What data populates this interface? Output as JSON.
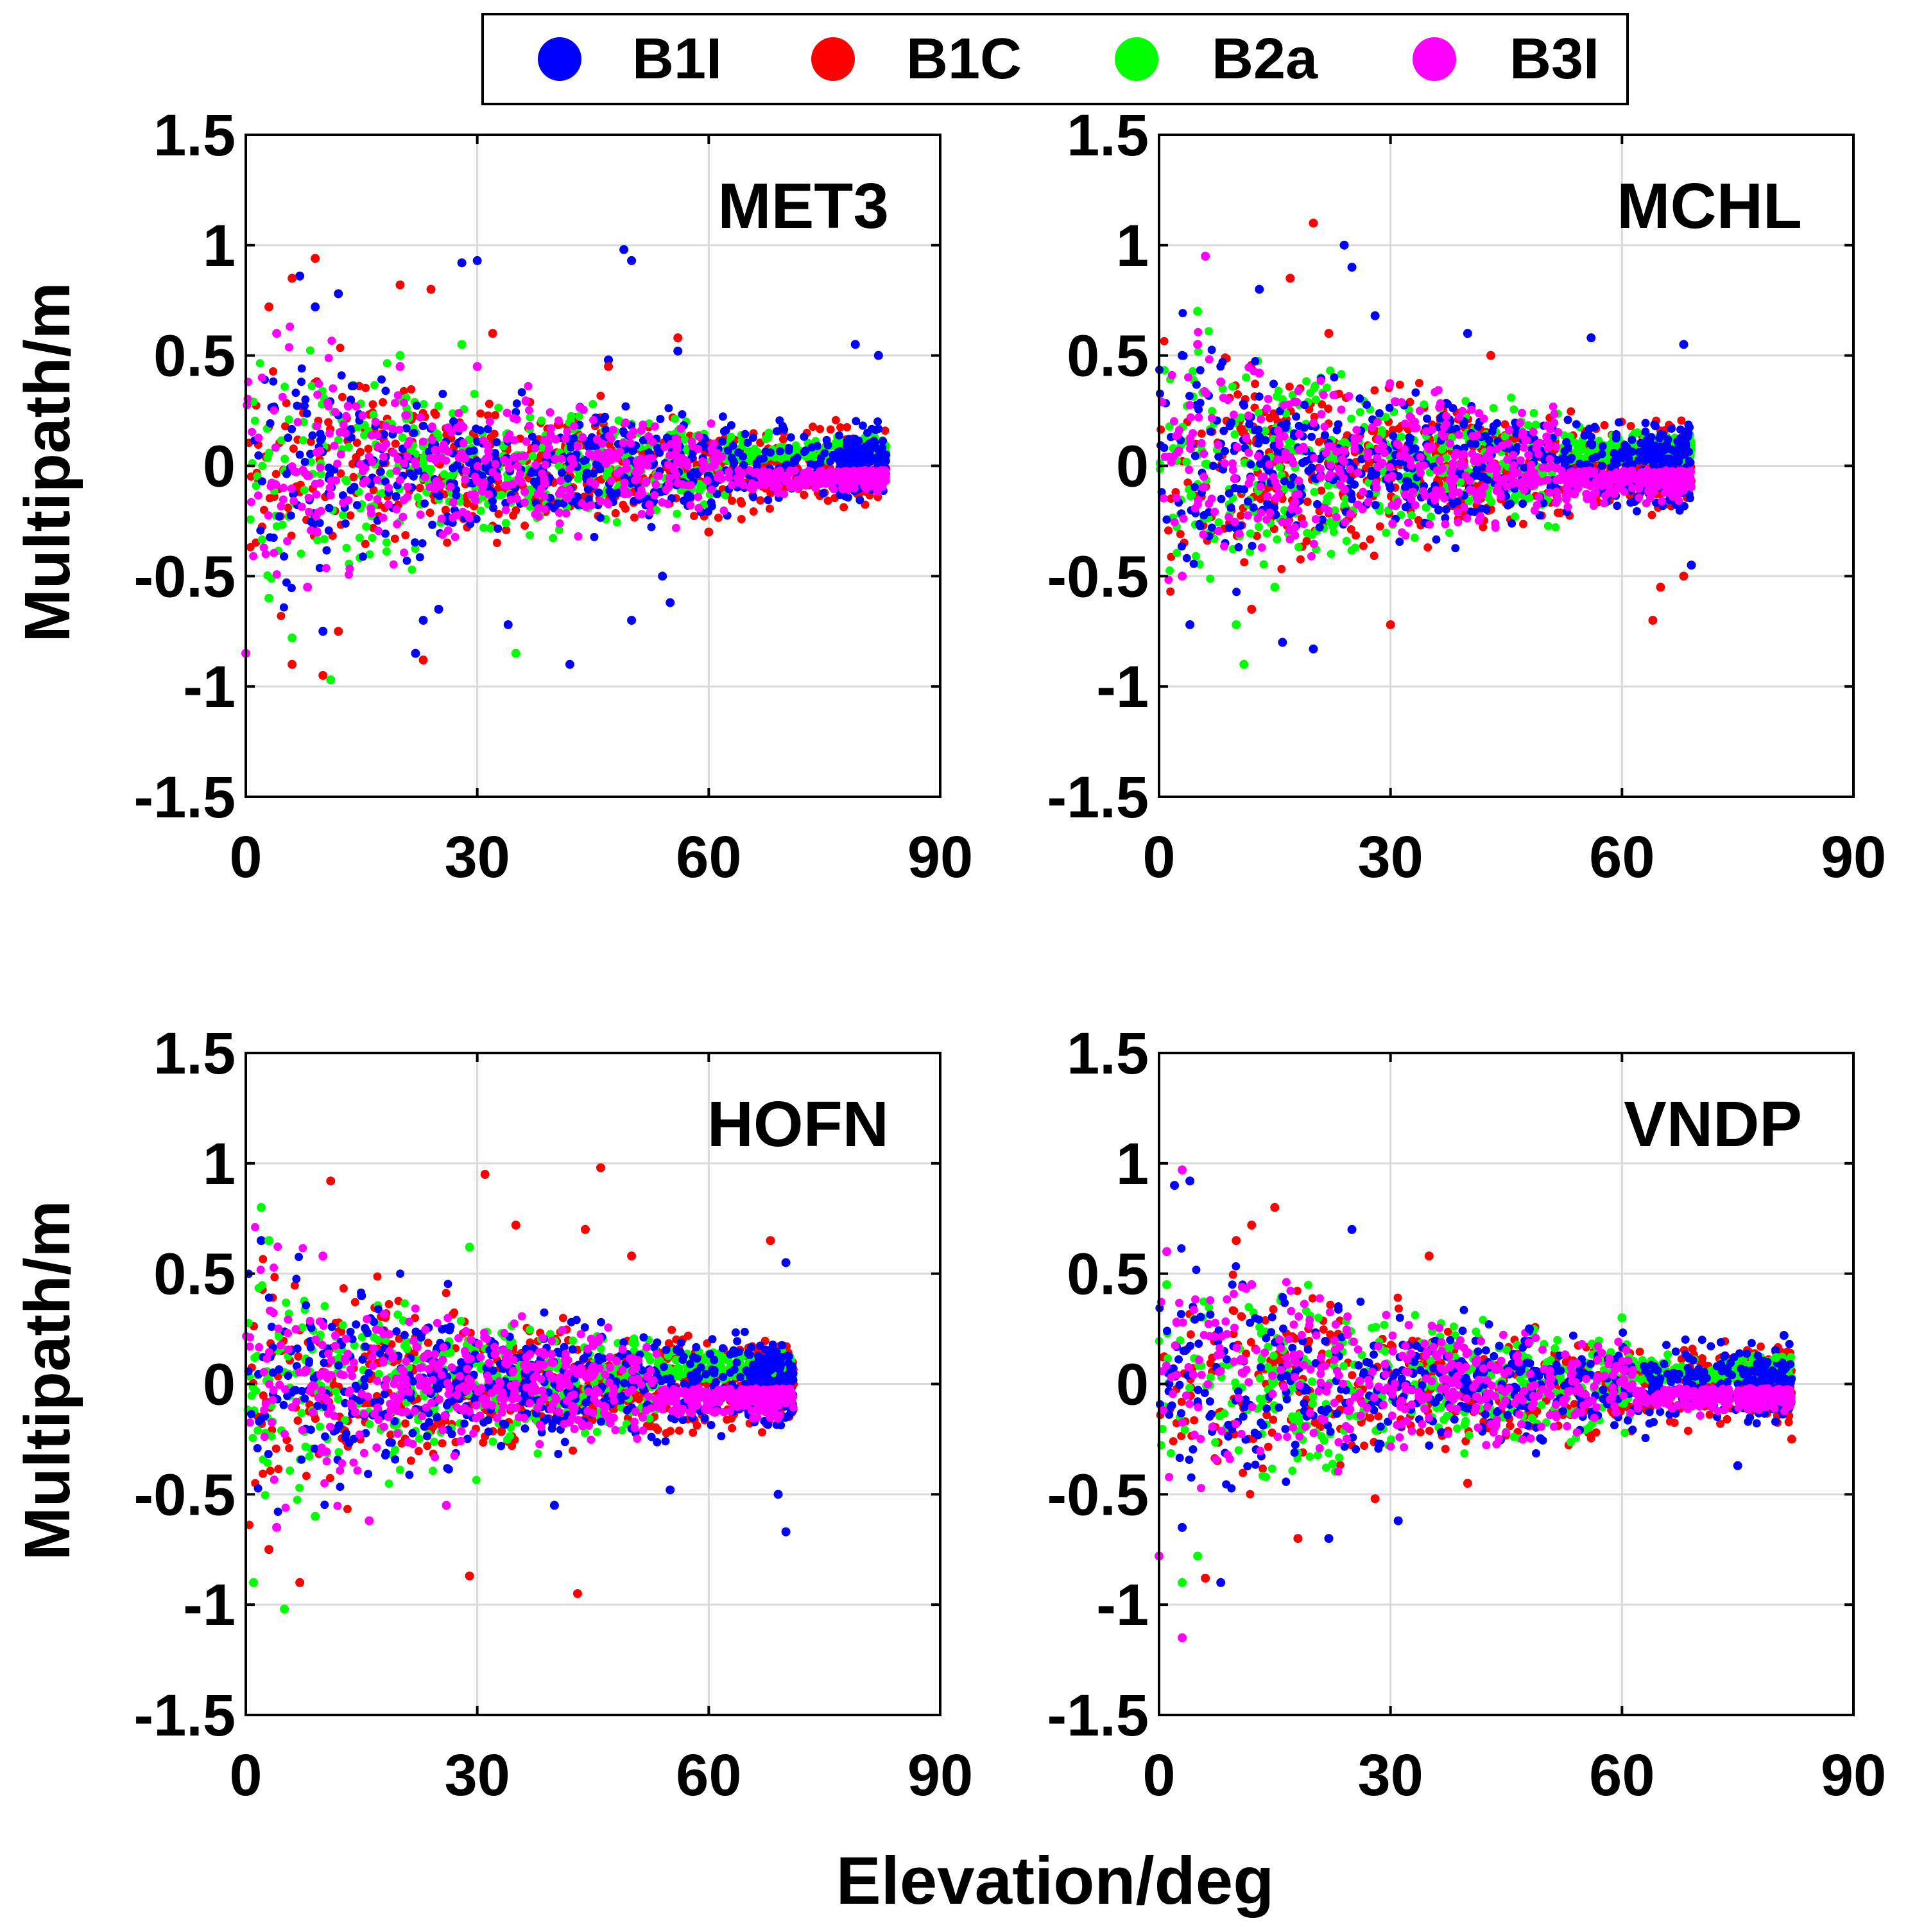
{
  "figure": {
    "xlabel": "Elevation/deg"
  },
  "legend": [
    {
      "name": "B1I",
      "color": "#0000ff"
    },
    {
      "name": "B1C",
      "color": "#ff0000"
    },
    {
      "name": "B2a",
      "color": "#00ff00"
    },
    {
      "name": "B3I",
      "color": "#ff00ff"
    }
  ],
  "chart_data": [
    {
      "type": "scatter",
      "station": "MET3",
      "ylabel": "Multipath/m",
      "xlim": [
        0,
        90
      ],
      "ylim": [
        -1.5,
        1.5
      ],
      "xticks": [
        "0",
        "30",
        "60",
        "90"
      ],
      "yticks": [
        "1.5",
        "1",
        "0.5",
        "0",
        "-0.5",
        "-1",
        "-1.5"
      ],
      "grid": true,
      "max_elevation": 83,
      "series": [
        {
          "name": "B1I",
          "color": "#0000ff",
          "points": [
            [
              28,
              0.92
            ],
            [
              30,
              0.93
            ],
            [
              49,
              0.98
            ],
            [
              50,
              0.93
            ],
            [
              7,
              0.86
            ],
            [
              42,
              -0.9
            ],
            [
              22,
              -0.85
            ],
            [
              50,
              -0.7
            ],
            [
              10,
              -0.75
            ],
            [
              23,
              -0.7
            ],
            [
              25,
              -0.65
            ],
            [
              55,
              -0.62
            ],
            [
              54,
              -0.5
            ],
            [
              34,
              -0.72
            ],
            [
              82,
              0.5
            ],
            [
              79,
              0.55
            ],
            [
              56,
              0.52
            ],
            [
              47,
              0.48
            ],
            [
              12,
              0.78
            ],
            [
              9,
              0.72
            ]
          ]
        },
        {
          "name": "B1C",
          "color": "#ff0000",
          "points": [
            [
              9,
              0.94
            ],
            [
              20,
              0.82
            ],
            [
              24,
              0.8
            ],
            [
              3,
              0.72
            ],
            [
              6,
              0.85
            ],
            [
              10,
              -0.95
            ],
            [
              6,
              -0.9
            ],
            [
              23,
              -0.88
            ],
            [
              12,
              -0.75
            ],
            [
              32,
              0.6
            ],
            [
              56,
              0.58
            ],
            [
              60,
              -0.3
            ],
            [
              47,
              0.45
            ]
          ]
        },
        {
          "name": "B2a",
          "color": "#00ff00",
          "points": [
            [
              11,
              -0.97
            ],
            [
              35,
              -0.85
            ],
            [
              3,
              -0.6
            ],
            [
              6,
              -0.78
            ],
            [
              28,
              0.55
            ],
            [
              20,
              0.5
            ]
          ]
        },
        {
          "name": "B3I",
          "color": "#ff00ff",
          "points": [
            [
              0,
              -0.85
            ],
            [
              4,
              0.6
            ],
            [
              8,
              -0.55
            ],
            [
              20,
              0.45
            ],
            [
              30,
              0.45
            ]
          ]
        }
      ]
    },
    {
      "type": "scatter",
      "station": "MCHL",
      "ylabel": "Multipath/m",
      "xlim": [
        0,
        90
      ],
      "ylim": [
        -1.5,
        1.5
      ],
      "xticks": [
        "0",
        "30",
        "60",
        "90"
      ],
      "yticks": [
        "1.5",
        "1",
        "0.5",
        "0",
        "-0.5",
        "-1",
        "-1.5"
      ],
      "grid": true,
      "max_elevation": 69,
      "series": [
        {
          "name": "B1I",
          "color": "#0000ff",
          "points": [
            [
              24,
              1.0
            ],
            [
              25,
              0.9
            ],
            [
              4,
              -0.72
            ],
            [
              20,
              -0.83
            ],
            [
              16,
              -0.8
            ],
            [
              13,
              0.8
            ],
            [
              28,
              0.68
            ],
            [
              40,
              0.6
            ],
            [
              56,
              0.58
            ],
            [
              68,
              0.55
            ],
            [
              69,
              -0.45
            ],
            [
              3,
              0.5
            ]
          ]
        },
        {
          "name": "B1C",
          "color": "#ff0000",
          "points": [
            [
              20,
              1.1
            ],
            [
              17,
              0.85
            ],
            [
              30,
              -0.72
            ],
            [
              64,
              -0.7
            ],
            [
              12,
              -0.65
            ],
            [
              22,
              0.6
            ],
            [
              65,
              -0.55
            ],
            [
              68,
              -0.5
            ],
            [
              43,
              0.5
            ]
          ]
        },
        {
          "name": "B2a",
          "color": "#00ff00",
          "points": [
            [
              11,
              -0.9
            ],
            [
              5,
              0.7
            ],
            [
              15,
              -0.55
            ],
            [
              10,
              -0.72
            ]
          ]
        },
        {
          "name": "B3I",
          "color": "#ff00ff",
          "points": [
            [
              6,
              0.95
            ],
            [
              3,
              -0.5
            ],
            [
              5,
              0.55
            ],
            [
              13,
              0.42
            ],
            [
              8,
              0.38
            ]
          ]
        }
      ]
    },
    {
      "type": "scatter",
      "station": "HOFN",
      "ylabel": "Multipath/m",
      "xlim": [
        0,
        90
      ],
      "ylim": [
        -1.5,
        1.5
      ],
      "xticks": [
        "0",
        "30",
        "60",
        "90"
      ],
      "yticks": [
        "1.5",
        "1",
        "0.5",
        "0",
        "-0.5",
        "-1",
        "-1.5"
      ],
      "grid": true,
      "max_elevation": 71,
      "series": [
        {
          "name": "B1I",
          "color": "#0000ff",
          "points": [
            [
              70,
              -0.67
            ],
            [
              69,
              -0.5
            ],
            [
              70,
              0.55
            ],
            [
              2,
              0.65
            ],
            [
              40,
              -0.55
            ],
            [
              55,
              -0.48
            ],
            [
              15,
              0.4
            ]
          ]
        },
        {
          "name": "B1C",
          "color": "#ff0000",
          "points": [
            [
              46,
              0.98
            ],
            [
              31,
              0.95
            ],
            [
              11,
              0.92
            ],
            [
              29,
              -0.87
            ],
            [
              43,
              -0.95
            ],
            [
              7,
              -0.9
            ],
            [
              44,
              0.7
            ],
            [
              50,
              0.58
            ],
            [
              68,
              0.65
            ],
            [
              35,
              0.72
            ],
            [
              3,
              -0.75
            ]
          ]
        },
        {
          "name": "B2a",
          "color": "#00ff00",
          "points": [
            [
              5,
              -1.02
            ],
            [
              1,
              -0.9
            ],
            [
              2,
              0.8
            ],
            [
              3,
              0.65
            ],
            [
              9,
              -0.6
            ],
            [
              29,
              0.62
            ]
          ]
        },
        {
          "name": "B3I",
          "color": "#ff00ff",
          "points": [
            [
              4,
              -0.65
            ],
            [
              16,
              -0.62
            ],
            [
              10,
              0.58
            ],
            [
              26,
              -0.55
            ]
          ]
        }
      ]
    },
    {
      "type": "scatter",
      "station": "VNDP",
      "ylabel": "Multipath/m",
      "xlim": [
        0,
        90
      ],
      "ylim": [
        -1.5,
        1.5
      ],
      "xticks": [
        "0",
        "30",
        "60",
        "90"
      ],
      "yticks": [
        "1.5",
        "1",
        "0.5",
        "0",
        "-0.5",
        "-1",
        "-1.5"
      ],
      "grid": true,
      "max_elevation": 82,
      "series": [
        {
          "name": "B1I",
          "color": "#0000ff",
          "points": [
            [
              2,
              0.9
            ],
            [
              4,
              0.92
            ],
            [
              8,
              -0.9
            ],
            [
              25,
              0.7
            ],
            [
              22,
              -0.7
            ],
            [
              31,
              -0.62
            ],
            [
              75,
              -0.37
            ],
            [
              81,
              0.22
            ],
            [
              48,
              0.25
            ],
            [
              3,
              -0.65
            ]
          ]
        },
        {
          "name": "B1C",
          "color": "#ff0000",
          "points": [
            [
              15,
              0.8
            ],
            [
              12,
              0.72
            ],
            [
              6,
              -0.88
            ],
            [
              18,
              -0.7
            ],
            [
              35,
              0.58
            ],
            [
              40,
              -0.45
            ],
            [
              82,
              -0.25
            ],
            [
              10,
              0.65
            ],
            [
              28,
              -0.52
            ]
          ]
        },
        {
          "name": "B2a",
          "color": "#00ff00",
          "points": [
            [
              3,
              -0.9
            ],
            [
              5,
              -0.78
            ],
            [
              1,
              0.45
            ],
            [
              60,
              0.3
            ],
            [
              80,
              0.12
            ]
          ]
        },
        {
          "name": "B3I",
          "color": "#ff00ff",
          "points": [
            [
              3,
              -1.15
            ],
            [
              3,
              0.97
            ],
            [
              1,
              0.6
            ],
            [
              0,
              -0.78
            ],
            [
              12,
              0.45
            ]
          ]
        }
      ]
    }
  ]
}
